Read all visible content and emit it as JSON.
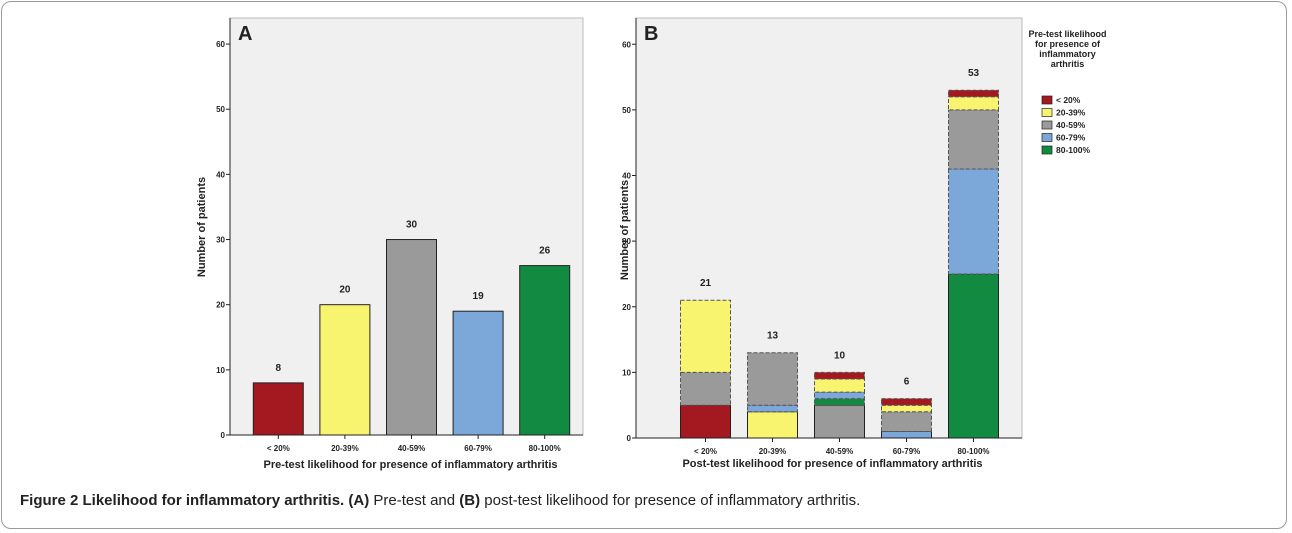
{
  "chart_data": [
    {
      "type": "bar",
      "panel": "A",
      "categories": [
        "< 20%",
        "20-39%",
        "40-59%",
        "60-79%",
        "80-100%"
      ],
      "values": [
        8,
        20,
        30,
        19,
        26
      ],
      "colors": [
        "#a3191f",
        "#f8f46f",
        "#9a9a9a",
        "#7ba8d8",
        "#138a41"
      ],
      "x_label": "Pre-test likelihood for presence of inflammatory arthritis",
      "y_label": "Number of patients",
      "ylim": [
        0,
        64
      ],
      "yticks": [
        0,
        10,
        20,
        30,
        40,
        50,
        60
      ]
    },
    {
      "type": "stacked_bar",
      "panel": "B",
      "categories": [
        "< 20%",
        "20-39%",
        "40-59%",
        "60-79%",
        "80-100%"
      ],
      "series": [
        {
          "name": "< 20%",
          "color": "#a3191f",
          "values": [
            5,
            0,
            1,
            1,
            1
          ]
        },
        {
          "name": "20-39%",
          "color": "#f8f46f",
          "values": [
            11,
            4,
            2,
            1,
            2
          ]
        },
        {
          "name": "40-59%",
          "color": "#9a9a9a",
          "values": [
            5,
            8,
            5,
            3,
            9
          ]
        },
        {
          "name": "60-79%",
          "color": "#7ba8d8",
          "values": [
            0,
            1,
            1,
            1,
            16
          ]
        },
        {
          "name": "80-100%",
          "color": "#138a41",
          "values": [
            0,
            0,
            1,
            0,
            25
          ]
        }
      ],
      "totals": [
        21,
        13,
        10,
        6,
        53
      ],
      "legend_title": "Pre-test likelihood for presence of inflammatory arthritis",
      "x_label": "Post-test likelihood for presence of inflammatory arthritis",
      "y_label": "Number of patients",
      "ylim": [
        0,
        64
      ],
      "yticks": [
        0,
        10,
        20,
        30,
        40,
        50,
        60
      ]
    }
  ],
  "caption": {
    "title": "Figure 2 Likelihood for inflammatory arthritis.",
    "a_label": "(A)",
    "a_text": "Pre-test and",
    "b_label": "(B)",
    "b_text": "post-test likelihood for presence of inflammatory arthritis."
  }
}
